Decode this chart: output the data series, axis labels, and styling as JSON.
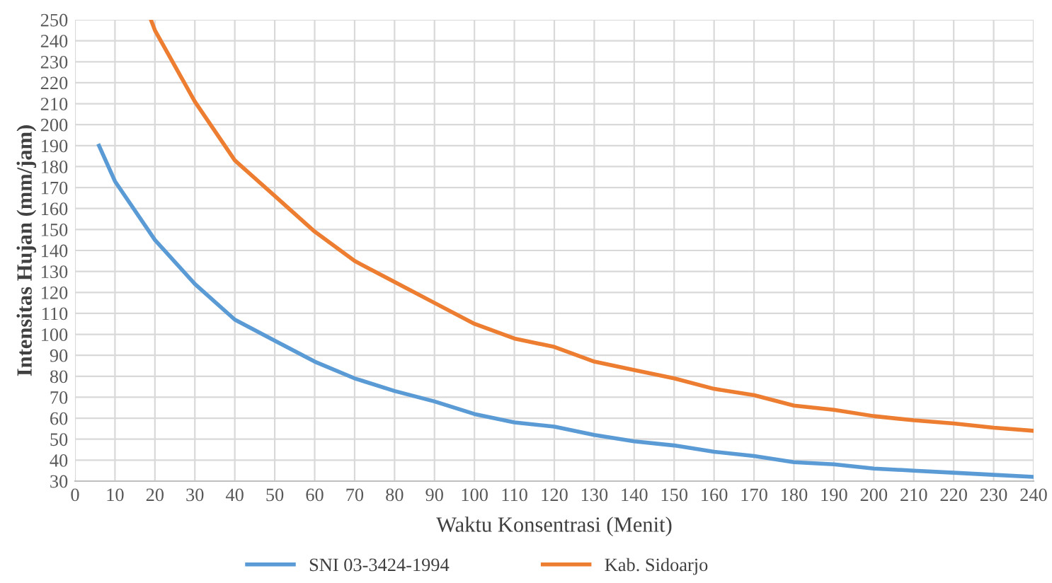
{
  "chart_data": {
    "type": "line",
    "xlabel": "Waktu Konsentrasi (Menit)",
    "ylabel": "Intensitas Hujan (mm/jam)",
    "xlim": [
      0,
      240
    ],
    "xticks": [
      0,
      10,
      20,
      30,
      40,
      50,
      60,
      70,
      80,
      90,
      100,
      110,
      120,
      130,
      140,
      150,
      160,
      170,
      180,
      190,
      200,
      210,
      220,
      230,
      240
    ],
    "ylim": [
      30,
      250
    ],
    "yticks": [
      30,
      40,
      50,
      60,
      70,
      80,
      90,
      100,
      110,
      120,
      130,
      140,
      150,
      160,
      170,
      180,
      190,
      200,
      210,
      220,
      230,
      240,
      250
    ],
    "grid": true,
    "legend": "bottom",
    "marker": "none",
    "line_style": "solid",
    "series": [
      {
        "name": "SNI 03-3424-1994",
        "color": "#5b9bd5",
        "x": [
          6,
          10,
          20,
          30,
          40,
          50,
          60,
          70,
          80,
          90,
          100,
          110,
          120,
          130,
          140,
          150,
          160,
          170,
          180,
          190,
          200,
          210,
          220,
          230,
          240
        ],
        "values": [
          190,
          173,
          145,
          124,
          107,
          97,
          87,
          79,
          73,
          68,
          62,
          58,
          56,
          52,
          49,
          47,
          44,
          42,
          39,
          38,
          36,
          35,
          34,
          33,
          32
        ]
      },
      {
        "name": "Kab. Sidoarjo",
        "color": "#ed7d31",
        "x": [
          19,
          20,
          30,
          40,
          50,
          60,
          70,
          80,
          90,
          100,
          110,
          120,
          130,
          140,
          150,
          160,
          170,
          180,
          190,
          200,
          210,
          220,
          230,
          240
        ],
        "values": [
          250,
          245,
          211,
          183,
          166,
          149,
          135,
          125,
          115,
          105,
          98,
          94,
          87,
          83,
          79,
          74,
          71,
          66,
          64,
          61,
          59,
          57.5,
          55.5,
          54
        ]
      }
    ]
  }
}
